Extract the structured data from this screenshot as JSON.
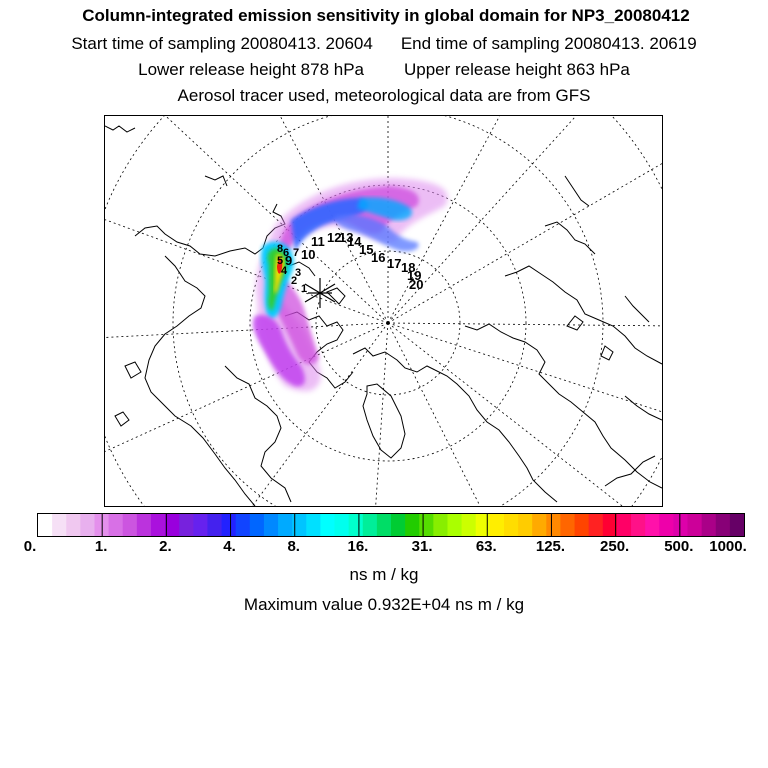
{
  "header": {
    "title": "Column-integrated emission sensitivity in global domain for NP3_20080412",
    "start_label": "Start time of sampling 20080413. 20604",
    "end_label": "End time of sampling 20080413. 20619",
    "lower_label": "Lower release height  878 hPa",
    "upper_label": "Upper release height  863 hPa",
    "tracer_label": "Aerosol tracer used, meteorological data are from GFS"
  },
  "map": {
    "projection": "polar-stereographic-north",
    "trajectory_labels": [
      "1",
      "2",
      "3",
      "4",
      "5",
      "6",
      "7",
      "8",
      "9",
      "10",
      "11",
      "12",
      "13",
      "14",
      "15",
      "16",
      "17",
      "18",
      "19",
      "20"
    ],
    "release_marker": "star",
    "colors": {
      "land_outline": "#000000",
      "grid": "#000000",
      "plume_magenta": "#cc33cc",
      "plume_blue": "#3366ff",
      "plume_cyan": "#00ccff",
      "plume_green": "#33cc33",
      "plume_yellow": "#ffcc00",
      "plume_red": "#ee2211"
    }
  },
  "legend": {
    "tick_labels": [
      "0.",
      "1.",
      "2.",
      "4.",
      "8.",
      "16.",
      "31.",
      "63.",
      "125.",
      "250.",
      "500.",
      "1000."
    ],
    "unit": "ns m / kg",
    "max_value": "Maximum value  0.932E+04 ns m / kg",
    "bins": [
      "#ffffff",
      "#f6e0f6",
      "#f0c8f0",
      "#e8b0ee",
      "#e490ec",
      "#d870e6",
      "#cc55e0",
      "#bb33dd",
      "#aa11dd",
      "#9900dd",
      "#7722dd",
      "#6622ee",
      "#4422ee",
      "#2222ff",
      "#1144ff",
      "#0066ff",
      "#0088ff",
      "#00aaff",
      "#00c4ff",
      "#00e0ff",
      "#00ffff",
      "#00ffee",
      "#00ffcc",
      "#00ee99",
      "#00dd66",
      "#00cc33",
      "#22cc00",
      "#55dd00",
      "#88ee00",
      "#aaff00",
      "#ccff00",
      "#eeff00",
      "#ffee00",
      "#ffdd00",
      "#ffcc00",
      "#ffaa00",
      "#ff8800",
      "#ff6600",
      "#ff4400",
      "#ff2222",
      "#ff0033",
      "#ff0066",
      "#ff1188",
      "#ff11aa",
      "#ee00aa",
      "#dd00aa",
      "#cc0099",
      "#aa0088",
      "#880077",
      "#660066"
    ]
  }
}
